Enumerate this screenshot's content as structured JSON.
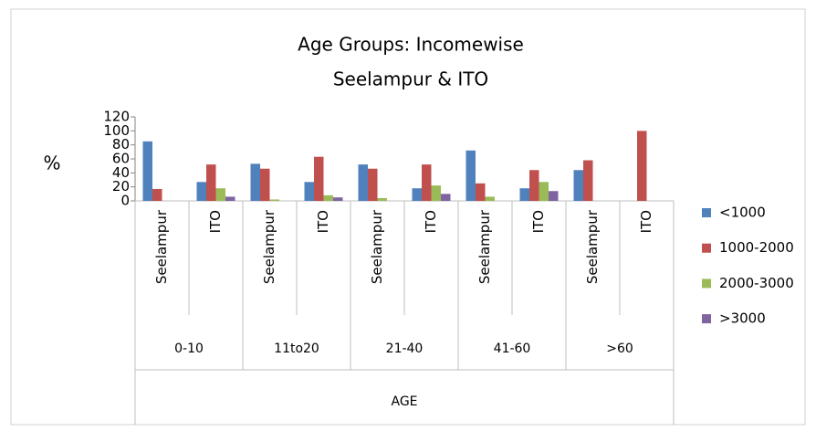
{
  "chart_data": {
    "type": "bar",
    "title": "Age Groups: Incomewise",
    "subtitle": "Seelampur & ITO",
    "x_label": "AGE",
    "y_label": "%",
    "groups": [
      "0-10",
      "11to20",
      "21-40",
      "41-60",
      ">60"
    ],
    "categories": [
      "Seelampur",
      "ITO",
      "Seelampur",
      "ITO",
      "Seelampur",
      "ITO",
      "Seelampur",
      "ITO",
      "Seelampur",
      "ITO"
    ],
    "series": [
      {
        "name": "<1000",
        "color": "#4f81bd",
        "values": [
          85,
          27,
          53,
          27,
          52,
          18,
          72,
          18,
          44,
          0
        ]
      },
      {
        "name": "1000-2000",
        "color": "#c0504d",
        "values": [
          17,
          52,
          46,
          63,
          46,
          52,
          25,
          44,
          58,
          100
        ]
      },
      {
        "name": "2000-3000",
        "color": "#9bbb59",
        "values": [
          0,
          18,
          2,
          8,
          4,
          22,
          6,
          27,
          0,
          0
        ]
      },
      {
        "name": ">3000",
        "color": "#8064a2",
        "values": [
          0,
          6,
          0,
          5,
          0,
          10,
          0,
          14,
          0,
          0
        ]
      }
    ],
    "ylim": [
      0,
      120
    ],
    "yticks": [
      0,
      20,
      40,
      60,
      80,
      100,
      120
    ],
    "legend": "right"
  }
}
